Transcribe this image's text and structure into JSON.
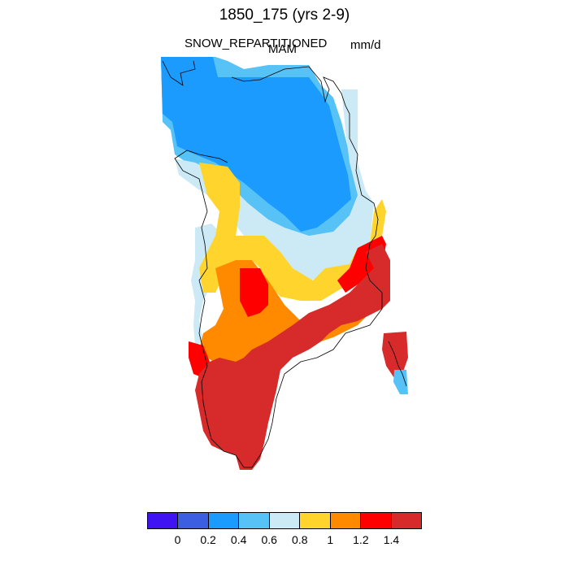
{
  "header": {
    "title": "1850_175 (yrs 2-9)",
    "variable": "SNOW_REPARTITIONED",
    "season": "MAM",
    "units": "mm/d"
  },
  "colorbar": {
    "colors": [
      "#3f13f2",
      "#3c5fe2",
      "#1c9bff",
      "#56c2f5",
      "#cce9f6",
      "#ffd42c",
      "#ff8a00",
      "#ff0000",
      "#d72a2a"
    ],
    "labels": [
      "0",
      "0.2",
      "0.4",
      "0.6",
      "0.8",
      "1",
      "1.2",
      "1.4"
    ]
  }
}
